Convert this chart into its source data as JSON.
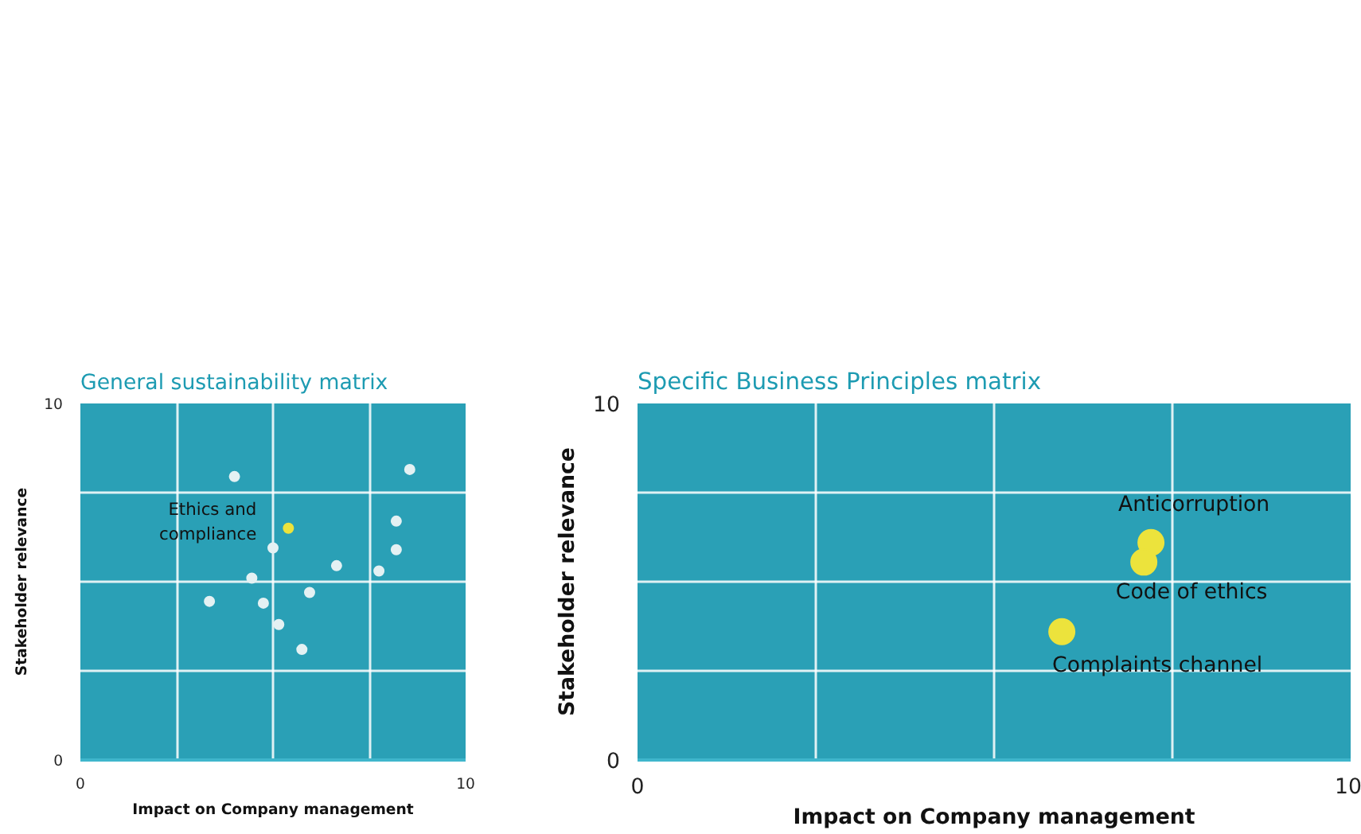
{
  "chart_data": [
    {
      "type": "scatter",
      "title": "General sustainability matrix",
      "xlabel": "Impact on Company management",
      "ylabel": "Stakeholder relevance",
      "xlim": [
        0,
        10
      ],
      "ylim": [
        0,
        10
      ],
      "xticks": [
        0,
        {
          "value": 2.5,
          "label": null
        },
        {
          "value": 5,
          "label": null
        },
        {
          "value": 7.5,
          "label": null
        },
        10
      ],
      "yticks": [
        0,
        {
          "value": 2.5,
          "label": null
        },
        {
          "value": 5,
          "label": null
        },
        {
          "value": 7.5,
          "label": null
        },
        10
      ],
      "grid": true,
      "marker": "circle",
      "series": [
        {
          "color": "#e4f1f3",
          "x": [
            4.0,
            8.55,
            8.2,
            5.0,
            8.2,
            6.65,
            7.75,
            4.45,
            3.35,
            4.75,
            5.95,
            5.15,
            5.75
          ],
          "values": [
            7.95,
            8.15,
            6.7,
            5.95,
            5.9,
            5.45,
            5.3,
            5.1,
            4.45,
            4.4,
            4.7,
            3.8,
            3.1
          ]
        },
        {
          "color": "#ece33c",
          "x": [
            5.4
          ],
          "values": [
            6.5
          ]
        }
      ],
      "annotations": [
        {
          "text": "Ethics and\ncompliance",
          "x": 5.4,
          "y": 6.5
        }
      ]
    },
    {
      "type": "scatter",
      "title": "Specific Business Principles matrix",
      "xlabel": "Impact on Company management",
      "ylabel": "Stakeholder relevance",
      "xlim": [
        0,
        10
      ],
      "ylim": [
        0,
        10
      ],
      "xticks": [
        0,
        {
          "value": 2.5,
          "label": null
        },
        {
          "value": 5,
          "label": null
        },
        {
          "value": 7.5,
          "label": null
        },
        10
      ],
      "yticks": [
        0,
        {
          "value": 2.5,
          "label": null
        },
        {
          "value": 5,
          "label": null
        },
        {
          "value": 7.5,
          "label": null
        },
        10
      ],
      "grid": true,
      "marker": "circle",
      "series": [
        {
          "color": "#ece33c",
          "x": [
            7.2,
            7.1,
            5.95
          ],
          "values": [
            6.1,
            5.55,
            3.6
          ]
        }
      ],
      "annotations": [
        {
          "text": "Anticorruption",
          "x": 7.2,
          "y": 6.1
        },
        {
          "text": "Code of ethics",
          "x": 7.1,
          "y": 5.55
        },
        {
          "text": "Complaints channel",
          "x": 5.95,
          "y": 3.6
        }
      ]
    }
  ]
}
